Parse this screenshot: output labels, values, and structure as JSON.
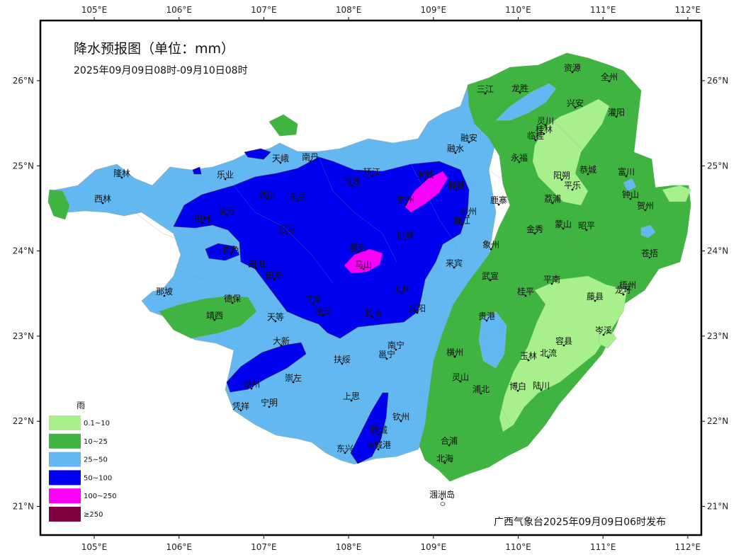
{
  "map": {
    "title": "降水预报图（单位：mm）",
    "subtitle": "2025年09月09日08时-09月10日08时",
    "credit": "广西气象台2025年09月09日06时发布",
    "lon_ticks": [
      "105°E",
      "106°E",
      "107°E",
      "108°E",
      "109°E",
      "110°E",
      "111°E",
      "112°E"
    ],
    "lat_ticks": [
      "26°N",
      "25°N",
      "24°N",
      "23°N",
      "22°N",
      "21°N"
    ],
    "legend": {
      "title": "雨",
      "items": [
        {
          "label": "0.1~10",
          "color": "#a8f08c"
        },
        {
          "label": "10~25",
          "color": "#3fb441"
        },
        {
          "label": "25~50",
          "color": "#63b8f2"
        },
        {
          "label": "50~100",
          "color": "#0000f0"
        },
        {
          "label": "100~250",
          "color": "#fa00fa"
        },
        {
          "label": "≥250",
          "color": "#7f0040"
        }
      ]
    },
    "cities": [
      {
        "name": "资源"
      },
      {
        "name": "全州"
      },
      {
        "name": "三江"
      },
      {
        "name": "龙胜"
      },
      {
        "name": "兴安"
      },
      {
        "name": "灌阳"
      },
      {
        "name": "灵川"
      },
      {
        "name": "桂林"
      },
      {
        "name": "临桂"
      },
      {
        "name": "融安"
      },
      {
        "name": "融水"
      },
      {
        "name": "永福"
      },
      {
        "name": "天峨"
      },
      {
        "name": "南丹"
      },
      {
        "name": "隆林"
      },
      {
        "name": "乐业"
      },
      {
        "name": "环江"
      },
      {
        "name": "罗城"
      },
      {
        "name": "河池"
      },
      {
        "name": "阳朔"
      },
      {
        "name": "恭城"
      },
      {
        "name": "富川"
      },
      {
        "name": "平乐"
      },
      {
        "name": "西林"
      },
      {
        "name": "凤山"
      },
      {
        "name": "东兰"
      },
      {
        "name": "柳城"
      },
      {
        "name": "宜州"
      },
      {
        "name": "鹿寨"
      },
      {
        "name": "荔浦"
      },
      {
        "name": "钟山"
      },
      {
        "name": "贺州"
      },
      {
        "name": "田林"
      },
      {
        "name": "凌云"
      },
      {
        "name": "柳州"
      },
      {
        "name": "柳江"
      },
      {
        "name": "巴马"
      },
      {
        "name": "金秀"
      },
      {
        "name": "蒙山"
      },
      {
        "name": "昭平"
      },
      {
        "name": "忻城"
      },
      {
        "name": "象州"
      },
      {
        "name": "百色"
      },
      {
        "name": "都安"
      },
      {
        "name": "马山"
      },
      {
        "name": "苍梧"
      },
      {
        "name": "田阳"
      },
      {
        "name": "来宾"
      },
      {
        "name": "田东"
      },
      {
        "name": "武宣"
      },
      {
        "name": "平南"
      },
      {
        "name": "梧州"
      },
      {
        "name": "那坡"
      },
      {
        "name": "上林"
      },
      {
        "name": "桂平"
      },
      {
        "name": "藤县"
      },
      {
        "name": "龙圩"
      },
      {
        "name": "德保"
      },
      {
        "name": "平果"
      },
      {
        "name": "隆安"
      },
      {
        "name": "宾阳"
      },
      {
        "name": "靖西"
      },
      {
        "name": "天等"
      },
      {
        "name": "武鸣"
      },
      {
        "name": "贵港"
      },
      {
        "name": "岑溪"
      },
      {
        "name": "容县"
      },
      {
        "name": "大新"
      },
      {
        "name": "南宁"
      },
      {
        "name": "邕宁"
      },
      {
        "name": "横州"
      },
      {
        "name": "玉林"
      },
      {
        "name": "北流"
      },
      {
        "name": "扶绥"
      },
      {
        "name": "龙州"
      },
      {
        "name": "崇左"
      },
      {
        "name": "灵山"
      },
      {
        "name": "浦北"
      },
      {
        "name": "博白"
      },
      {
        "name": "陆川"
      },
      {
        "name": "凭祥"
      },
      {
        "name": "宁明"
      },
      {
        "name": "上思"
      },
      {
        "name": "钦州"
      },
      {
        "name": "防城"
      },
      {
        "name": "合浦"
      },
      {
        "name": "东兴"
      },
      {
        "name": "防城港"
      },
      {
        "name": "北海"
      },
      {
        "name": "涠洲岛"
      }
    ]
  }
}
